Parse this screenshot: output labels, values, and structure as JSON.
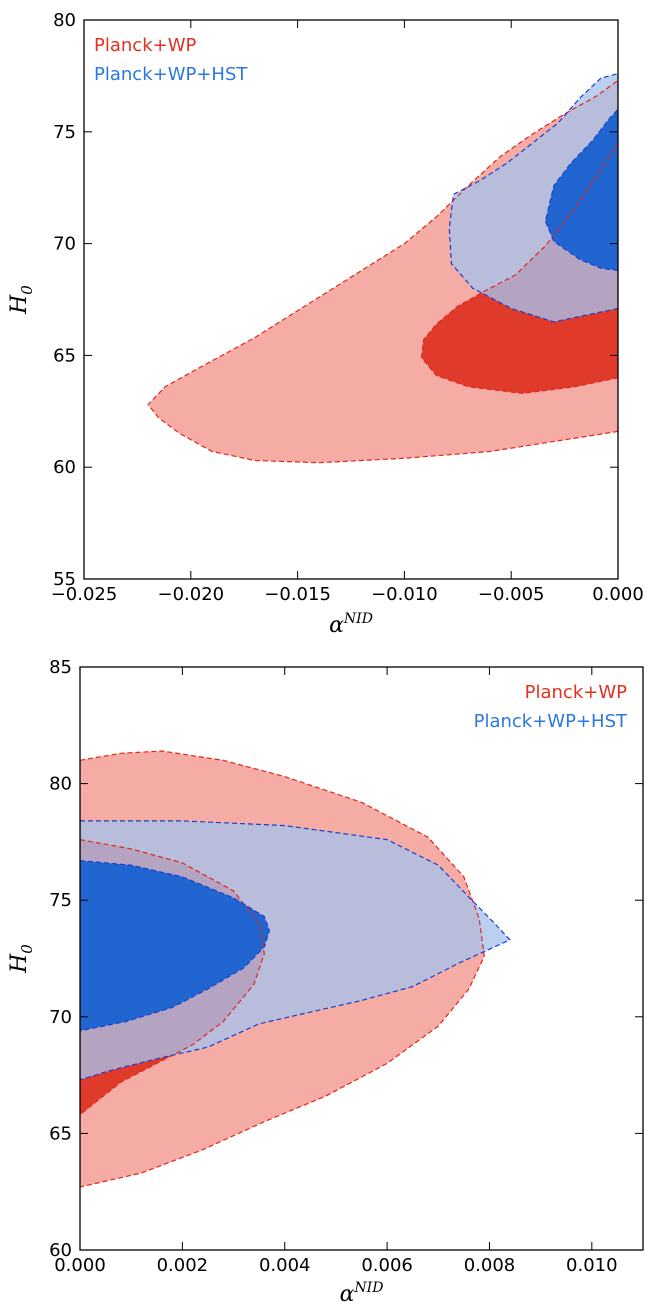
{
  "chart_data": [
    {
      "type": "contour",
      "xlabel": "α^NID",
      "ylabel": "H_0",
      "xlim": [
        -0.025,
        0.0
      ],
      "ylim": [
        55,
        80
      ],
      "xticks": [
        "−0.025",
        "−0.020",
        "−0.015",
        "−0.010",
        "−0.005",
        "0.000"
      ],
      "yticks": [
        "55",
        "60",
        "65",
        "70",
        "75",
        "80"
      ],
      "grid": false,
      "legend_position": "top-left",
      "series": [
        {
          "name": "Planck+WP",
          "color": "#e03a2a",
          "outer_color": "#f4aca5",
          "line_color": "#e3261b",
          "contour_95": [
            [
              0.0,
              61.6
            ],
            [
              -0.002,
              61.3
            ],
            [
              -0.006,
              60.7
            ],
            [
              -0.01,
              60.4
            ],
            [
              -0.014,
              60.2
            ],
            [
              -0.017,
              60.3
            ],
            [
              -0.019,
              60.7
            ],
            [
              -0.0205,
              61.5
            ],
            [
              -0.0215,
              62.2
            ],
            [
              -0.022,
              62.8
            ],
            [
              -0.0212,
              63.6
            ],
            [
              -0.0195,
              64.5
            ],
            [
              -0.017,
              65.8
            ],
            [
              -0.0145,
              67.3
            ],
            [
              -0.012,
              68.8
            ],
            [
              -0.01,
              70.0
            ],
            [
              -0.0085,
              71.2
            ],
            [
              -0.007,
              72.6
            ],
            [
              -0.0055,
              73.9
            ],
            [
              -0.004,
              74.9
            ],
            [
              -0.0025,
              75.8
            ],
            [
              -0.001,
              76.6
            ],
            [
              0.0,
              77.3
            ]
          ],
          "contour_68": [
            [
              0.0,
              64.0
            ],
            [
              -0.002,
              63.6
            ],
            [
              -0.0045,
              63.3
            ],
            [
              -0.007,
              63.6
            ],
            [
              -0.0085,
              64.1
            ],
            [
              -0.0092,
              64.9
            ],
            [
              -0.0091,
              65.7
            ],
            [
              -0.0085,
              66.4
            ],
            [
              -0.0075,
              67.2
            ],
            [
              -0.0062,
              67.9
            ],
            [
              -0.0048,
              68.6
            ],
            [
              -0.0034,
              69.9
            ],
            [
              -0.002,
              71.6
            ],
            [
              -0.001,
              73.0
            ],
            [
              0.0,
              74.5
            ]
          ]
        },
        {
          "name": "Planck+WP+HST",
          "color": "#2166d0",
          "outer_color": "#a8c1ec",
          "line_color": "#1a3fd0",
          "contour_95": [
            [
              0.0,
              67.1
            ],
            [
              -0.001,
              66.9
            ],
            [
              -0.003,
              66.5
            ],
            [
              -0.005,
              67.1
            ],
            [
              -0.0068,
              68.0
            ],
            [
              -0.0078,
              69.1
            ],
            [
              -0.0079,
              70.7
            ],
            [
              -0.0077,
              72.2
            ],
            [
              -0.0065,
              72.8
            ],
            [
              -0.0052,
              73.6
            ],
            [
              -0.004,
              74.5
            ],
            [
              -0.0028,
              75.4
            ],
            [
              -0.0018,
              76.5
            ],
            [
              -0.0008,
              77.4
            ],
            [
              0.0,
              77.6
            ]
          ],
          "contour_68": [
            [
              0.0,
              68.8
            ],
            [
              -0.0008,
              68.9
            ],
            [
              -0.0018,
              69.3
            ],
            [
              -0.003,
              70.1
            ],
            [
              -0.0034,
              71.0
            ],
            [
              -0.003,
              72.6
            ],
            [
              -0.0022,
              73.6
            ],
            [
              -0.0012,
              74.6
            ],
            [
              -0.0004,
              75.6
            ],
            [
              0.0,
              76.0
            ]
          ]
        }
      ]
    },
    {
      "type": "contour",
      "xlabel": "α^NID",
      "ylabel": "H_0",
      "xlim": [
        0.0,
        0.011
      ],
      "ylim": [
        60,
        85
      ],
      "xticks": [
        "0.000",
        "0.002",
        "0.004",
        "0.006",
        "0.008",
        "0.010"
      ],
      "yticks": [
        "60",
        "65",
        "70",
        "75",
        "80",
        "85"
      ],
      "grid": false,
      "legend_position": "top-right",
      "series": [
        {
          "name": "Planck+WP",
          "color": "#e03a2a",
          "outer_color": "#f4aca5",
          "line_color": "#e3261b",
          "contour_95": [
            [
              0.0,
              81.0
            ],
            [
              0.0008,
              81.3
            ],
            [
              0.0016,
              81.4
            ],
            [
              0.0028,
              81.0
            ],
            [
              0.004,
              80.3
            ],
            [
              0.0055,
              79.2
            ],
            [
              0.0068,
              77.7
            ],
            [
              0.0075,
              76.0
            ],
            [
              0.0078,
              74.2
            ],
            [
              0.0079,
              72.6
            ],
            [
              0.0076,
              71.2
            ],
            [
              0.007,
              69.6
            ],
            [
              0.006,
              68.0
            ],
            [
              0.0048,
              66.6
            ],
            [
              0.0036,
              65.5
            ],
            [
              0.0024,
              64.3
            ],
            [
              0.0012,
              63.3
            ],
            [
              0.0,
              62.7
            ]
          ],
          "contour_68": [
            [
              0.0,
              77.6
            ],
            [
              0.001,
              77.2
            ],
            [
              0.002,
              76.6
            ],
            [
              0.003,
              75.4
            ],
            [
              0.0035,
              74.0
            ],
            [
              0.0036,
              72.7
            ],
            [
              0.0034,
              71.4
            ],
            [
              0.0028,
              69.8
            ],
            [
              0.0022,
              68.8
            ],
            [
              0.0015,
              68.0
            ],
            [
              0.0008,
              67.2
            ],
            [
              0.0,
              65.8
            ]
          ]
        },
        {
          "name": "Planck+WP+HST",
          "color": "#2166d0",
          "outer_color": "#a8c1ec",
          "line_color": "#1a3fd0",
          "contour_95": [
            [
              0.0,
              78.4
            ],
            [
              0.002,
              78.4
            ],
            [
              0.004,
              78.2
            ],
            [
              0.006,
              77.6
            ],
            [
              0.007,
              76.5
            ],
            [
              0.0077,
              74.9
            ],
            [
              0.0081,
              74.0
            ],
            [
              0.0084,
              73.3
            ],
            [
              0.008,
              72.9
            ],
            [
              0.0074,
              72.3
            ],
            [
              0.0065,
              71.3
            ],
            [
              0.0055,
              70.7
            ],
            [
              0.0045,
              70.2
            ],
            [
              0.0035,
              69.7
            ],
            [
              0.0025,
              68.7
            ],
            [
              0.0015,
              68.2
            ],
            [
              0.0006,
              67.7
            ],
            [
              0.0,
              67.3
            ]
          ],
          "contour_68": [
            [
              0.0,
              76.7
            ],
            [
              0.001,
              76.5
            ],
            [
              0.002,
              76.0
            ],
            [
              0.003,
              75.1
            ],
            [
              0.0036,
              74.3
            ],
            [
              0.0037,
              73.7
            ],
            [
              0.0036,
              73.0
            ],
            [
              0.0032,
              72.1
            ],
            [
              0.0025,
              71.2
            ],
            [
              0.0018,
              70.4
            ],
            [
              0.0009,
              69.8
            ],
            [
              0.0,
              69.4
            ]
          ]
        }
      ]
    }
  ]
}
